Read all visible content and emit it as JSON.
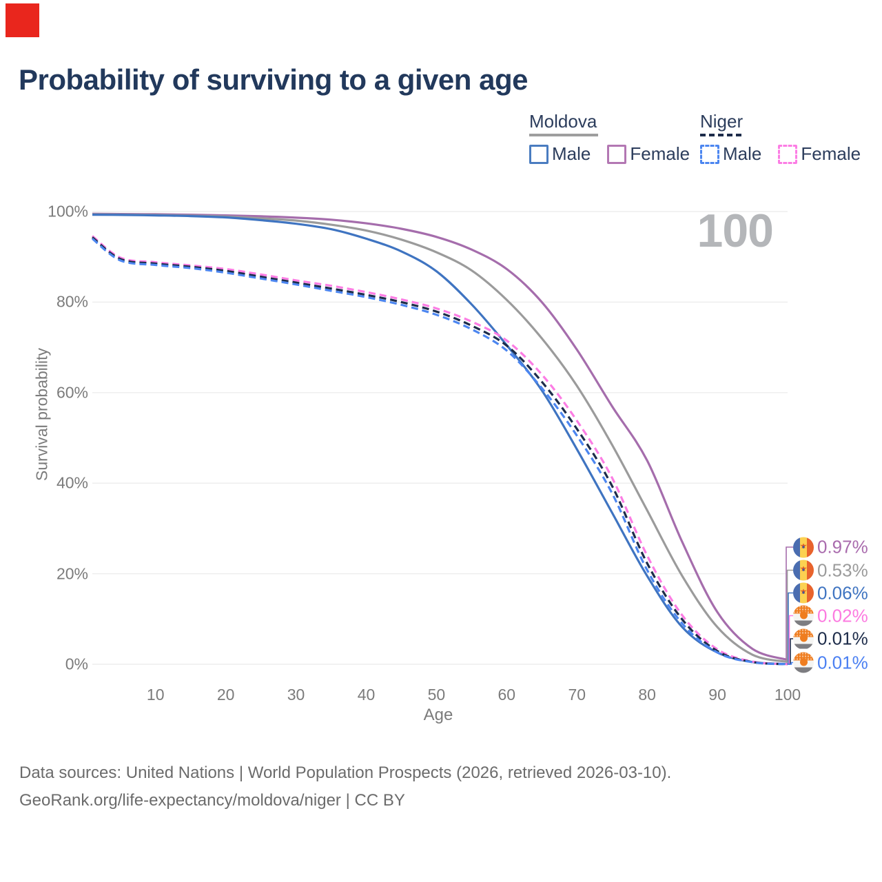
{
  "page": {
    "badge_color": "#e9261d"
  },
  "title": "Probability of surviving to a given age",
  "watermark": "100",
  "legend": {
    "groups": [
      {
        "name": "Moldova",
        "line_style": "solid",
        "underline_color": "#9e9e9e",
        "items": [
          {
            "label": "Male",
            "color": "#4a7cc0"
          },
          {
            "label": "Female",
            "color": "#b377b3"
          }
        ]
      },
      {
        "name": "Niger",
        "line_style": "dashed",
        "underline_color": "#1d2c4a",
        "items": [
          {
            "label": "Male",
            "color": "#4c86f0"
          },
          {
            "label": "Female",
            "color": "#fc7de4"
          }
        ]
      }
    ]
  },
  "chart_data": {
    "type": "line",
    "title": "Probability of surviving to a given age",
    "xlabel": "Age",
    "ylabel": "Survival probability",
    "xlim": [
      1,
      100
    ],
    "ylim": [
      0,
      100
    ],
    "grid": "horizontal",
    "legend_position": "top-right",
    "x_ticks": [
      10,
      20,
      30,
      40,
      50,
      60,
      70,
      80,
      90,
      100
    ],
    "y_ticks": [
      {
        "value": 0,
        "label": "0%"
      },
      {
        "value": 20,
        "label": "20%"
      },
      {
        "value": 40,
        "label": "40%"
      },
      {
        "value": 60,
        "label": "60%"
      },
      {
        "value": 80,
        "label": "80%"
      },
      {
        "value": 100,
        "label": "100%"
      }
    ],
    "x": [
      1,
      5,
      10,
      15,
      20,
      25,
      30,
      35,
      40,
      45,
      50,
      55,
      60,
      65,
      70,
      75,
      80,
      85,
      90,
      95,
      100
    ],
    "series": [
      {
        "name": "Moldova Female",
        "country": "Moldova",
        "sex": "Female",
        "color": "#a56dac",
        "dash": false,
        "flag": "moldova",
        "end_label": "0.97%",
        "end_label_color": "#a96bad",
        "values": [
          99.5,
          99.45,
          99.4,
          99.3,
          99.15,
          98.95,
          98.65,
          98.2,
          97.4,
          96.2,
          94.4,
          91.6,
          87.3,
          80.0,
          69.5,
          57.0,
          45.0,
          27.0,
          11.5,
          3.4,
          0.97
        ]
      },
      {
        "name": "Moldova Both sexes",
        "country": "Moldova",
        "sex": "Both sexes",
        "color": "#9b9b9b",
        "dash": false,
        "flag": "moldova",
        "end_label": "0.53%",
        "end_label_color": "#9b9b9b",
        "values": [
          99.4,
          99.35,
          99.25,
          99.1,
          98.9,
          98.5,
          98.0,
          97.1,
          95.8,
          93.8,
          91.0,
          87.0,
          80.5,
          72.0,
          61.5,
          48.5,
          34.0,
          19.5,
          8.2,
          2.1,
          0.53
        ]
      },
      {
        "name": "Moldova Male",
        "country": "Moldova",
        "sex": "Male",
        "color": "#3f74c1",
        "dash": false,
        "flag": "moldova",
        "end_label": "0.06%",
        "end_label_color": "#3f74c1",
        "values": [
          99.3,
          99.25,
          99.15,
          99.0,
          98.7,
          98.1,
          97.3,
          96.1,
          94.0,
          91.2,
          86.8,
          79.5,
          70.5,
          60.5,
          47.5,
          33.5,
          19.5,
          8.2,
          2.6,
          0.5,
          0.06
        ]
      },
      {
        "name": "Niger Female",
        "country": "Niger",
        "sex": "Female",
        "color": "#fc7de4",
        "dash": true,
        "flag": "niger",
        "end_label": "0.02%",
        "end_label_color": "#fc7ae0",
        "values": [
          94.6,
          89.8,
          88.8,
          88.1,
          87.3,
          86.1,
          84.8,
          83.6,
          82.2,
          80.6,
          78.6,
          75.7,
          71.5,
          64.0,
          53.8,
          41.2,
          24.0,
          10.8,
          3.3,
          0.6,
          0.02
        ]
      },
      {
        "name": "Niger Both sexes",
        "country": "Niger",
        "sex": "Both sexes",
        "color": "#1d2c4a",
        "dash": true,
        "flag": "niger",
        "end_label": "0.01%",
        "end_label_color": "#1d2c4a",
        "values": [
          94.3,
          89.5,
          88.5,
          87.8,
          86.9,
          85.6,
          84.3,
          83.0,
          81.6,
          80.0,
          77.9,
          74.8,
          70.4,
          62.4,
          52.0,
          39.4,
          22.3,
          9.9,
          2.9,
          0.5,
          0.01
        ]
      },
      {
        "name": "Niger Male",
        "country": "Niger",
        "sex": "Male",
        "color": "#4c86f0",
        "dash": true,
        "flag": "niger",
        "end_label": "0.01%",
        "end_label_color": "#4b80f2",
        "values": [
          94.0,
          89.2,
          88.2,
          87.5,
          86.5,
          85.2,
          83.9,
          82.5,
          81.1,
          79.4,
          77.2,
          74.0,
          69.3,
          61.0,
          50.5,
          37.8,
          20.8,
          9.0,
          2.6,
          0.45,
          0.01
        ]
      }
    ]
  },
  "source": {
    "line1": "Data sources: United Nations | World Population Prospects (2026, retrieved 2026-03-10).",
    "line2": "GeoRank.org/life-expectancy/moldova/niger | CC BY"
  }
}
